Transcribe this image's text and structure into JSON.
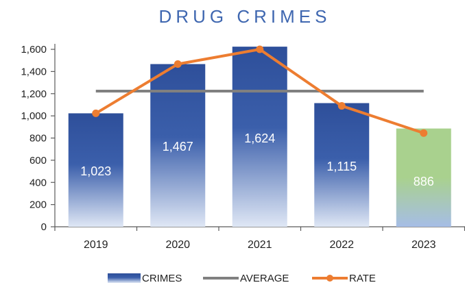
{
  "chart_data": {
    "type": "bar",
    "title": "DRUG CRIMES",
    "xlabel": "",
    "ylabel": "",
    "categories": [
      "2019",
      "2020",
      "2021",
      "2022",
      "2023"
    ],
    "ylim": [
      0,
      1600
    ],
    "yticks": [
      "0",
      "200",
      "400",
      "600",
      "800",
      "1,000",
      "1,200",
      "1,400",
      "1,600"
    ],
    "ytick_values": [
      0,
      200,
      400,
      600,
      800,
      1000,
      1200,
      1400,
      1600
    ],
    "series": [
      {
        "name": "CRIMES",
        "type": "bar",
        "values": [
          1023,
          1467,
          1624,
          1115,
          886
        ],
        "labels": [
          "1,023",
          "1,467",
          "1,624",
          "1,115",
          "886"
        ],
        "colors": [
          "#2e4f9a",
          "#2e4f9a",
          "#2e4f9a",
          "#2e4f9a",
          "#a9d18e"
        ]
      },
      {
        "name": "AVERAGE",
        "type": "line",
        "values": [
          1223,
          1223,
          1223,
          1223,
          1223
        ],
        "color": "#808080"
      },
      {
        "name": "RATE",
        "type": "line",
        "values": [
          1023,
          1467,
          1600,
          1090,
          845
        ],
        "color": "#ed7d31"
      }
    ],
    "legend": {
      "placement": "bottom",
      "items": [
        "CRIMES",
        "AVERAGE",
        "RATE"
      ]
    },
    "grid": false
  }
}
